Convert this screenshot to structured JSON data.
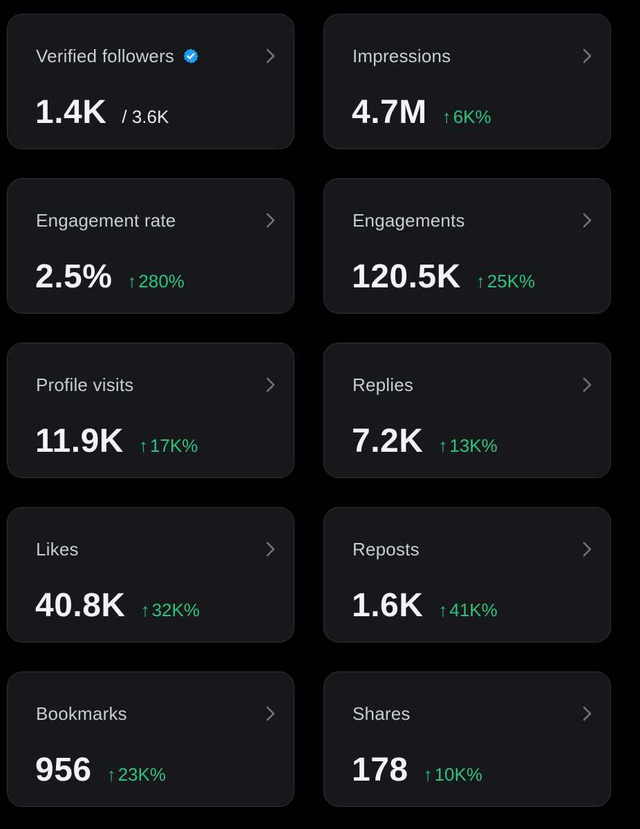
{
  "colors": {
    "background": "#000000",
    "card_background": "#16181c",
    "card_border": "#2f3336",
    "label": "#c9ccd0",
    "value": "#f2f3f4",
    "positive": "#2ec27e",
    "verified_badge": "#1d9bf0",
    "chevron": "#71767b"
  },
  "icons": {
    "chevron": "chevron-right-icon",
    "verified": "verified-badge-icon",
    "delta": "arrow-up-icon"
  },
  "delta_arrow": "↑",
  "cards": [
    {
      "label": "Verified followers",
      "value": "1.4K",
      "total": "/ 3.6K"
    },
    {
      "label": "Impressions",
      "value": "4.7M",
      "delta": "6K%"
    },
    {
      "label": "Engagement rate",
      "value": "2.5%",
      "delta": "280%"
    },
    {
      "label": "Engagements",
      "value": "120.5K",
      "delta": "25K%"
    },
    {
      "label": "Profile visits",
      "value": "11.9K",
      "delta": "17K%"
    },
    {
      "label": "Replies",
      "value": "7.2K",
      "delta": "13K%"
    },
    {
      "label": "Likes",
      "value": "40.8K",
      "delta": "32K%"
    },
    {
      "label": "Reposts",
      "value": "1.6K",
      "delta": "41K%"
    },
    {
      "label": "Bookmarks",
      "value": "956",
      "delta": "23K%"
    },
    {
      "label": "Shares",
      "value": "178",
      "delta": "10K%"
    }
  ]
}
